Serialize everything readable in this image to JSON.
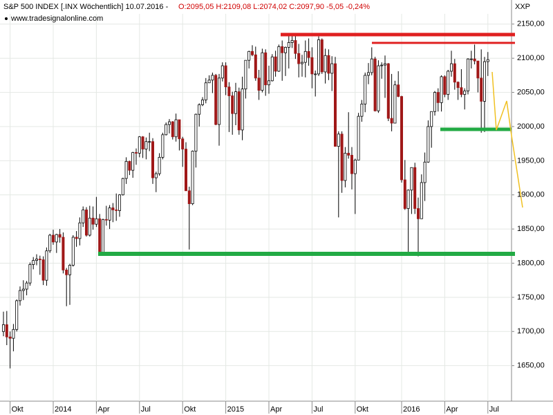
{
  "chart_data": {
    "type": "candlestick",
    "title": "S&P 500 INDEX [.INX  Wöchentlich] 10.07.2016 -",
    "subtitle": "O:2095,05 H:2109,08 L:2074,02 C:2097,90 -5,05 -0,24%",
    "source": "www.tradesignalonline.com",
    "y_axis_label": "XXP",
    "up_color": "#ffffff",
    "down_color": "#a01818",
    "outline_color": "#000000",
    "grid": true,
    "ylim": [
      1598,
      2165
    ],
    "yticks": [
      {
        "value": 1650,
        "label": "1650,00"
      },
      {
        "value": 1700,
        "label": "1700,00"
      },
      {
        "value": 1750,
        "label": "1750,00"
      },
      {
        "value": 1800,
        "label": "1800,00"
      },
      {
        "value": 1850,
        "label": "1850,00"
      },
      {
        "value": 1900,
        "label": "1900,00"
      },
      {
        "value": 1950,
        "label": "1950,00"
      },
      {
        "value": 2000,
        "label": "2000,00"
      },
      {
        "value": 2050,
        "label": "2050,00"
      },
      {
        "value": 2100,
        "label": "2100,00"
      },
      {
        "value": 2150,
        "label": "2150,00"
      }
    ],
    "categories": [
      null,
      null,
      "Okt",
      null,
      null,
      null,
      null,
      null,
      null,
      null,
      null,
      null,
      null,
      null,
      null,
      "2014",
      null,
      null,
      null,
      null,
      null,
      null,
      null,
      null,
      null,
      null,
      null,
      null,
      "Apr",
      null,
      null,
      null,
      null,
      null,
      null,
      null,
      null,
      null,
      null,
      null,
      null,
      "Jul",
      null,
      null,
      null,
      null,
      null,
      null,
      null,
      null,
      null,
      null,
      null,
      null,
      "Okt",
      null,
      null,
      null,
      null,
      null,
      null,
      null,
      null,
      null,
      null,
      null,
      null,
      "2015",
      null,
      null,
      null,
      null,
      null,
      null,
      null,
      null,
      null,
      null,
      null,
      null,
      "Apr",
      null,
      null,
      null,
      null,
      null,
      null,
      null,
      null,
      null,
      null,
      null,
      null,
      "Jul",
      null,
      null,
      null,
      null,
      null,
      null,
      null,
      null,
      null,
      null,
      null,
      null,
      "Okt",
      null,
      null,
      null,
      null,
      null,
      null,
      null,
      null,
      null,
      null,
      null,
      null,
      null,
      "2016",
      null,
      null,
      null,
      null,
      null,
      null,
      null,
      null,
      null,
      null,
      null,
      null,
      "Apr",
      null,
      null,
      null,
      null,
      null,
      null,
      null,
      null,
      null,
      null,
      null,
      null,
      "Jul"
    ],
    "open": [
      1700,
      1710,
      1692,
      1690,
      1703,
      1745,
      1760,
      1762,
      1771,
      1798,
      1804,
      1806,
      1805,
      1775,
      1818,
      1841,
      1831,
      1842,
      1838,
      1790,
      1783,
      1797,
      1838,
      1836,
      1859,
      1878,
      1841,
      1866,
      1857,
      1865,
      1815,
      1864,
      1863,
      1881,
      1878,
      1877,
      1900,
      1924,
      1949,
      1936,
      1962,
      1961,
      1985,
      1967,
      1978,
      1978,
      1925,
      1931,
      1955,
      1988,
      2003,
      2007,
      1985,
      2010,
      1982,
      1967,
      1906,
      1887,
      1964,
      2018,
      2032,
      2039,
      2064,
      2068,
      2075,
      2003,
      2071,
      2089,
      2058,
      2045,
      2019,
      2051,
      1995,
      2055,
      2097,
      2110,
      2105,
      2071,
      2053,
      2108,
      2061,
      2067,
      2102,
      2081,
      2117,
      2108,
      2116,
      2123,
      2126,
      2107,
      2092,
      2094,
      2110,
      2101,
      2077,
      2077,
      2127,
      2080,
      2104,
      2078,
      2092,
      1971,
      1989,
      1921,
      1961,
      1958,
      1931,
      1951,
      2015,
      2033,
      2075,
      2079,
      2099,
      2023,
      2089,
      2090,
      2092,
      2012,
      2005,
      2061,
      2044,
      1922,
      1880,
      1907,
      1940,
      1880,
      1865,
      1918,
      1948,
      2000,
      2022,
      2050,
      2035,
      2073,
      2047,
      2081,
      2092,
      2065,
      2057,
      2047,
      2052,
      2099,
      2099,
      2096,
      2071,
      2037,
      2095.05
    ],
    "high": [
      1729,
      1730,
      1700,
      1711,
      1747,
      1766,
      1775,
      1774,
      1801,
      1809,
      1813,
      1811,
      1810,
      1823,
      1843,
      1849,
      1843,
      1850,
      1845,
      1793,
      1799,
      1841,
      1847,
      1867,
      1883,
      1882,
      1884,
      1883,
      1897,
      1872,
      1865,
      1884,
      1885,
      1888,
      1902,
      1901,
      1925,
      1955,
      1950,
      1963,
      1968,
      1986,
      1986,
      1984,
      1991,
      1983,
      1934,
      1961,
      1991,
      2006,
      2011,
      2008,
      2019,
      2010,
      1985,
      1977,
      1912,
      1965,
      2019,
      2034,
      2043,
      2071,
      2075,
      2079,
      2077,
      2077,
      2094,
      2094,
      2065,
      2051,
      2064,
      2057,
      2073,
      2097,
      2111,
      2119,
      2117,
      2083,
      2114,
      2113,
      2089,
      2106,
      2111,
      2120,
      2126,
      2117,
      2135,
      2134,
      2133,
      2121,
      2105,
      2126,
      2129,
      2116,
      2082,
      2132,
      2129,
      2114,
      2113,
      2103,
      2102,
      1993,
      1993,
      1970,
      2021,
      1970,
      1953,
      2020,
      2039,
      2079,
      2093,
      2116,
      2102,
      2097,
      2094,
      2104,
      2093,
      2077,
      2067,
      2081,
      2045,
      1951,
      1908,
      1940,
      1947,
      1896,
      1930,
      1962,
      2009,
      2022,
      2052,
      2056,
      2075,
      2075,
      2083,
      2111,
      2099,
      2066,
      2084,
      2056,
      2100,
      2111,
      2120,
      2096,
      2113,
      2102,
      2109.08
    ],
    "low": [
      1693,
      1680,
      1646,
      1671,
      1700,
      1738,
      1746,
      1753,
      1767,
      1791,
      1797,
      1783,
      1768,
      1767,
      1815,
      1827,
      1815,
      1830,
      1785,
      1737,
      1739,
      1795,
      1824,
      1826,
      1853,
      1839,
      1839,
      1849,
      1853,
      1814,
      1815,
      1855,
      1850,
      1860,
      1862,
      1868,
      1899,
      1916,
      1929,
      1925,
      1944,
      1955,
      1954,
      1952,
      1964,
      1916,
      1904,
      1928,
      1952,
      1987,
      1990,
      1981,
      1978,
      1965,
      1941,
      1906,
      1820,
      1885,
      1940,
      2000,
      2030,
      2034,
      2064,
      2049,
      2002,
      1972,
      2066,
      2046,
      1992,
      1988,
      2002,
      1988,
      1980,
      2041,
      2085,
      2103,
      2067,
      2039,
      2050,
      2045,
      2048,
      2066,
      2073,
      2080,
      2067,
      2074,
      2085,
      2115,
      2099,
      2072,
      2073,
      2072,
      2089,
      2056,
      2044,
      2074,
      2077,
      2063,
      2068,
      2052,
      1971,
      1867,
      1903,
      1911,
      1953,
      1908,
      1872,
      1951,
      2007,
      2021,
      2062,
      2075,
      2022,
      2020,
      2070,
      2042,
      2008,
      1993,
      2005,
      2043,
      1918,
      1878,
      1812,
      1872,
      1872,
      1810,
      1865,
      1891,
      1947,
      1969,
      2016,
      2022,
      2022,
      2043,
      2039,
      2073,
      2054,
      2039,
      2043,
      2025,
      2047,
      2085,
      2091,
      2050,
      1991,
      1992,
      2074.02
    ],
    "close": [
      1710,
      1692,
      1690,
      1703,
      1745,
      1760,
      1762,
      1771,
      1798,
      1804,
      1806,
      1805,
      1775,
      1818,
      1841,
      1831,
      1842,
      1838,
      1790,
      1783,
      1797,
      1838,
      1836,
      1859,
      1878,
      1841,
      1866,
      1857,
      1865,
      1815,
      1864,
      1863,
      1881,
      1878,
      1877,
      1900,
      1924,
      1949,
      1936,
      1962,
      1961,
      1985,
      1967,
      1978,
      1978,
      1925,
      1931,
      1955,
      1988,
      2003,
      2007,
      1985,
      2010,
      1982,
      1967,
      1906,
      1887,
      1964,
      2018,
      2032,
      2039,
      2064,
      2068,
      2075,
      2003,
      2071,
      2089,
      2058,
      2045,
      2019,
      2051,
      1995,
      2055,
      2097,
      2110,
      2105,
      2071,
      2053,
      2108,
      2061,
      2067,
      2102,
      2081,
      2117,
      2108,
      2116,
      2123,
      2126,
      2107,
      2092,
      2094,
      2110,
      2101,
      2077,
      2077,
      2127,
      2080,
      2104,
      2078,
      2092,
      1971,
      1989,
      1921,
      1961,
      1958,
      1931,
      1951,
      2015,
      2033,
      2075,
      2079,
      2099,
      2023,
      2089,
      2090,
      2092,
      2012,
      2005,
      2061,
      2044,
      1922,
      1880,
      1907,
      1940,
      1880,
      1865,
      1918,
      1948,
      2000,
      2022,
      2050,
      2035,
      2073,
      2047,
      2081,
      2092,
      2065,
      2057,
      2047,
      2052,
      2099,
      2099,
      2096,
      2071,
      2037,
      2095,
      2097.9
    ]
  }
}
